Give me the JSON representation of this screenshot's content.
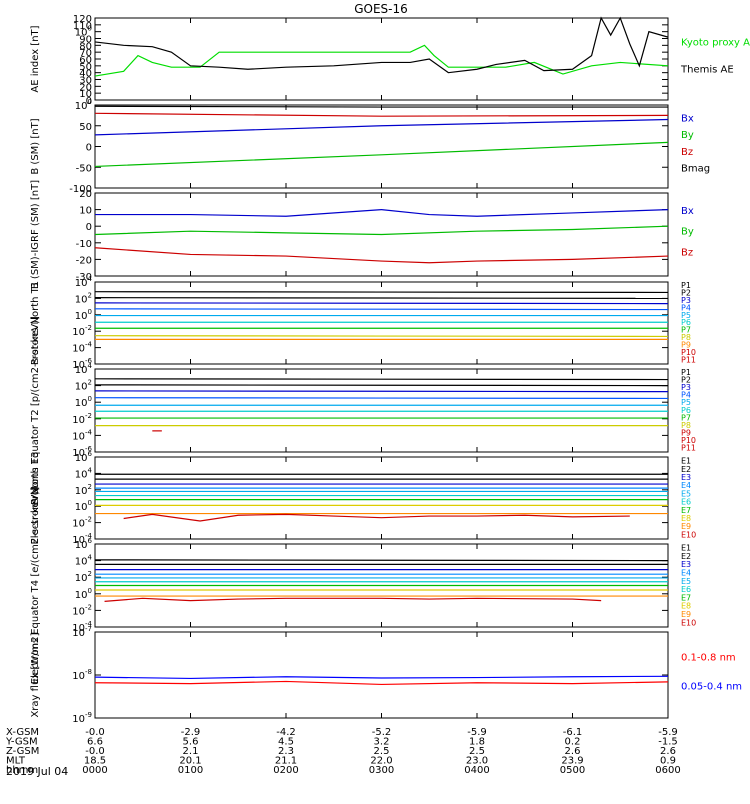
{
  "title": "GOES-16",
  "date_label": "2019 Jul 04",
  "x_ticks": [
    "0000",
    "0100",
    "0200",
    "0300",
    "0400",
    "0500",
    "0600"
  ],
  "ephemeris": {
    "rows": [
      {
        "label": "X-GSM",
        "values": [
          "-0.0",
          "-2.9",
          "-4.2",
          "-5.2",
          "-5.9",
          "-6.1",
          "-5.9"
        ]
      },
      {
        "label": "Y-GSM",
        "values": [
          "6.6",
          "5.6",
          "4.5",
          "3.2",
          "1.8",
          "0.2",
          "-1.5"
        ]
      },
      {
        "label": "Z-GSM",
        "values": [
          "-0.0",
          "2.1",
          "2.3",
          "2.5",
          "2.5",
          "2.6",
          "2.6"
        ]
      },
      {
        "label": "MLT",
        "values": [
          "18.5",
          "20.1",
          "21.1",
          "22.0",
          "23.0",
          "23.9",
          "0.9"
        ]
      },
      {
        "label": "hhmm",
        "values": [
          "0000",
          "0100",
          "0200",
          "0300",
          "0400",
          "0500",
          "0600"
        ]
      }
    ]
  },
  "chart_data": [
    {
      "type": "line",
      "ylabel": "AE index [nT]",
      "ylim": [
        0,
        120
      ],
      "yticks": [
        "0",
        "10",
        "20",
        "30",
        "40",
        "50",
        "60",
        "70",
        "80",
        "90",
        "100",
        "110",
        "120"
      ],
      "series": [
        {
          "name": "Kyoto proxy AE",
          "color": "#00dd00",
          "x": [
            0,
            0.3,
            0.45,
            0.6,
            0.8,
            1.1,
            1.3,
            2.5,
            3.3,
            3.45,
            3.55,
            3.7,
            4.3,
            4.6,
            4.9,
            5.2,
            5.5,
            6.0
          ],
          "values": [
            35,
            42,
            65,
            55,
            48,
            48,
            70,
            70,
            70,
            80,
            65,
            48,
            48,
            55,
            38,
            50,
            55,
            50
          ]
        },
        {
          "name": "Themis AE",
          "color": "#000000",
          "x": [
            0,
            0.3,
            0.6,
            0.8,
            1.0,
            1.3,
            1.6,
            2.0,
            2.5,
            3.0,
            3.3,
            3.5,
            3.7,
            4.0,
            4.2,
            4.5,
            4.7,
            5.0,
            5.2,
            5.3,
            5.4,
            5.5,
            5.6,
            5.7,
            5.8,
            6.0
          ],
          "values": [
            85,
            80,
            78,
            70,
            50,
            48,
            45,
            48,
            50,
            55,
            55,
            60,
            40,
            45,
            52,
            58,
            43,
            45,
            65,
            120,
            95,
            120,
            82,
            50,
            100,
            92
          ]
        }
      ]
    },
    {
      "type": "line",
      "ylabel": "B (SM) [nT]",
      "ylim": [
        -100,
        100
      ],
      "yticks": [
        "-100",
        "-50",
        "0",
        "50",
        "100"
      ],
      "series": [
        {
          "name": "Bx",
          "color": "#0000cc",
          "x": [
            0,
            3,
            6
          ],
          "values": [
            28,
            50,
            65
          ]
        },
        {
          "name": "By",
          "color": "#00bb00",
          "x": [
            0,
            3,
            6
          ],
          "values": [
            -48,
            -20,
            10
          ]
        },
        {
          "name": "Bz",
          "color": "#cc0000",
          "x": [
            0,
            3,
            6
          ],
          "values": [
            80,
            73,
            75
          ]
        },
        {
          "name": "Bmag",
          "color": "#000000",
          "x": [
            0,
            3,
            6
          ],
          "values": [
            97,
            95,
            95
          ]
        }
      ]
    },
    {
      "type": "line",
      "ylabel": "B (SM)-IGRF (SM) [nT]",
      "ylim": [
        -30,
        20
      ],
      "yticks": [
        "-30",
        "-20",
        "-10",
        "0",
        "10",
        "20"
      ],
      "series": [
        {
          "name": "Bx",
          "color": "#0000cc",
          "x": [
            0,
            1,
            2,
            3,
            3.5,
            4,
            5,
            6
          ],
          "values": [
            7,
            7,
            6,
            10,
            7,
            6,
            8,
            10
          ]
        },
        {
          "name": "By",
          "color": "#00bb00",
          "x": [
            0,
            1,
            2,
            3,
            4,
            5,
            6
          ],
          "values": [
            -5,
            -3,
            -4,
            -5,
            -3,
            -2,
            0
          ]
        },
        {
          "name": "Bz",
          "color": "#cc0000",
          "x": [
            0,
            1,
            2,
            3,
            3.5,
            4,
            5,
            6
          ],
          "values": [
            -13,
            -17,
            -18,
            -21,
            -22,
            -21,
            -20,
            -18
          ]
        }
      ]
    },
    {
      "type": "line",
      "ylabel": "Protons North T1",
      "log": true,
      "ylim": [
        -7,
        4
      ],
      "yticks": [
        "10-6",
        "10-4",
        "10-2",
        "100",
        "102",
        "104"
      ],
      "series": [
        {
          "name": "P1",
          "color": "#000000",
          "x": [
            0,
            6
          ],
          "values": [
            2.7,
            2.6
          ]
        },
        {
          "name": "P2",
          "color": "#000000",
          "x": [
            0,
            6
          ],
          "values": [
            1.9,
            1.8
          ]
        },
        {
          "name": "P3",
          "color": "#0000cc",
          "x": [
            0,
            6
          ],
          "values": [
            1.2,
            1.1
          ]
        },
        {
          "name": "P4",
          "color": "#0055ff",
          "x": [
            0,
            6
          ],
          "values": [
            0.4,
            0.3
          ]
        },
        {
          "name": "P5",
          "color": "#00aaee",
          "x": [
            0,
            6
          ],
          "values": [
            -0.5,
            -0.5
          ]
        },
        {
          "name": "P6",
          "color": "#00cccc",
          "x": [
            0,
            6
          ],
          "values": [
            -1.4,
            -1.4
          ]
        },
        {
          "name": "P7",
          "color": "#00bb00",
          "x": [
            0,
            6
          ],
          "values": [
            -2.2,
            -2.2
          ]
        },
        {
          "name": "P8",
          "color": "#cccc00",
          "x": [
            0,
            6
          ],
          "values": [
            -3.2,
            -3.3
          ]
        },
        {
          "name": "P9",
          "color": "#ff8800",
          "x": [
            0,
            6
          ],
          "values": [
            -3.7,
            -3.7
          ]
        }
      ],
      "legend": [
        "P1",
        "P2",
        "P3",
        "P4",
        "P5",
        "P6",
        "P7",
        "P8",
        "P9",
        "P10",
        "P11"
      ]
    },
    {
      "type": "line",
      "ylabel": "Protons Equator T2 [p/(cm2-s-sr-keV)]",
      "log": true,
      "ylim": [
        -7,
        4
      ],
      "yticks": [
        "10-6",
        "10-4",
        "10-2",
        "100",
        "102",
        "104"
      ],
      "series": [
        {
          "name": "P1",
          "color": "#000000",
          "x": [
            0,
            6
          ],
          "values": [
            2.7,
            2.6
          ]
        },
        {
          "name": "P2",
          "color": "#000000",
          "x": [
            0,
            6
          ],
          "values": [
            1.9,
            1.8
          ]
        },
        {
          "name": "P3",
          "color": "#0000cc",
          "x": [
            0,
            6
          ],
          "values": [
            1.1,
            1.0
          ]
        },
        {
          "name": "P4",
          "color": "#0055ff",
          "x": [
            0,
            6
          ],
          "values": [
            0.2,
            0.1
          ]
        },
        {
          "name": "P5",
          "color": "#00aaee",
          "x": [
            0,
            6
          ],
          "values": [
            -0.8,
            -0.8
          ]
        },
        {
          "name": "P6",
          "color": "#00cccc",
          "x": [
            0,
            6
          ],
          "values": [
            -1.6,
            -1.6
          ]
        },
        {
          "name": "P7",
          "color": "#00bb00",
          "x": [
            0,
            6
          ],
          "values": [
            -2.5,
            -2.5
          ]
        },
        {
          "name": "P8",
          "color": "#cccc00",
          "x": [
            0,
            6
          ],
          "values": [
            -3.5,
            -3.5
          ]
        },
        {
          "name": "P10",
          "color": "#cc0000",
          "x": [
            0.6,
            0.7
          ],
          "values": [
            -4.2,
            -4.2
          ]
        }
      ],
      "legend": [
        "P1",
        "P2",
        "P3",
        "P4",
        "P5",
        "P6",
        "P7",
        "P8",
        "P9",
        "P10",
        "P11"
      ]
    },
    {
      "type": "line",
      "ylabel": "Electrons North T3",
      "log": true,
      "ylim": [
        -4,
        6
      ],
      "yticks": [
        "10-4",
        "10-2",
        "100",
        "102",
        "104",
        "106"
      ],
      "series": [
        {
          "name": "E1",
          "color": "#000000",
          "x": [
            0,
            6
          ],
          "values": [
            3.9,
            3.9
          ]
        },
        {
          "name": "E2",
          "color": "#000000",
          "x": [
            0,
            6
          ],
          "values": [
            3.3,
            3.3
          ]
        },
        {
          "name": "E3",
          "color": "#0000cc",
          "x": [
            0,
            6
          ],
          "values": [
            2.7,
            2.7
          ]
        },
        {
          "name": "E4",
          "color": "#0088ff",
          "x": [
            0,
            6
          ],
          "values": [
            2.2,
            2.2
          ]
        },
        {
          "name": "E5",
          "color": "#00aaee",
          "x": [
            0,
            6
          ],
          "values": [
            1.8,
            1.8
          ]
        },
        {
          "name": "E6",
          "color": "#00cccc",
          "x": [
            0,
            6
          ],
          "values": [
            1.3,
            1.3
          ]
        },
        {
          "name": "E7",
          "color": "#00bb00",
          "x": [
            0,
            6
          ],
          "values": [
            0.8,
            0.8
          ]
        },
        {
          "name": "E8",
          "color": "#ddcc00",
          "x": [
            0,
            6
          ],
          "values": [
            0.1,
            0.1
          ]
        },
        {
          "name": "E9",
          "color": "#ff8800",
          "x": [
            0,
            6
          ],
          "values": [
            -0.9,
            -0.9
          ]
        },
        {
          "name": "E10",
          "color": "#cc0000",
          "x": [
            0.3,
            0.6,
            1.1,
            1.5,
            2.0,
            2.5,
            3.0,
            3.5,
            4.0,
            4.5,
            5.0,
            5.6
          ],
          "values": [
            -1.5,
            -1.0,
            -1.8,
            -1.1,
            -1.0,
            -1.2,
            -1.4,
            -1.2,
            -1.2,
            -1.1,
            -1.3,
            -1.2
          ]
        }
      ],
      "legend": [
        "E1",
        "E2",
        "E3",
        "E4",
        "E5",
        "E6",
        "E7",
        "E8",
        "E9",
        "E10"
      ]
    },
    {
      "type": "line",
      "ylabel": "Electrons Equator T4 [e/(cm2-s-sr-keV)]",
      "log": true,
      "ylim": [
        -5,
        6
      ],
      "yticks": [
        "10-4",
        "10-2",
        "100",
        "102",
        "104",
        "106"
      ],
      "series": [
        {
          "name": "E1",
          "color": "#000000",
          "x": [
            0,
            6
          ],
          "values": [
            3.9,
            3.8
          ]
        },
        {
          "name": "E2",
          "color": "#000000",
          "x": [
            0,
            6
          ],
          "values": [
            3.3,
            3.3
          ]
        },
        {
          "name": "E3",
          "color": "#0000cc",
          "x": [
            0,
            6
          ],
          "values": [
            2.6,
            2.6
          ]
        },
        {
          "name": "E4",
          "color": "#0088ff",
          "x": [
            0,
            6
          ],
          "values": [
            2.0,
            2.0
          ]
        },
        {
          "name": "E5",
          "color": "#00aaee",
          "x": [
            0,
            6
          ],
          "values": [
            1.5,
            1.5
          ]
        },
        {
          "name": "E6",
          "color": "#00cccc",
          "x": [
            0,
            6
          ],
          "values": [
            1.0,
            1.0
          ]
        },
        {
          "name": "E7",
          "color": "#00bb00",
          "x": [
            0,
            6
          ],
          "values": [
            0.5,
            0.5
          ]
        },
        {
          "name": "E8",
          "color": "#ddcc00",
          "x": [
            0,
            6
          ],
          "values": [
            -0.1,
            -0.1
          ]
        },
        {
          "name": "E9",
          "color": "#ff8800",
          "x": [
            0,
            6
          ],
          "values": [
            -0.9,
            -0.9
          ]
        },
        {
          "name": "E10",
          "color": "#cc0000",
          "x": [
            0.1,
            0.5,
            1.0,
            1.5,
            2.0,
            2.5,
            3.0,
            3.5,
            4.0,
            5.0,
            5.3
          ],
          "values": [
            -1.6,
            -1.2,
            -1.5,
            -1.3,
            -1.2,
            -1.2,
            -1.2,
            -1.3,
            -1.2,
            -1.3,
            -1.5
          ]
        }
      ],
      "legend": [
        "E1",
        "E2",
        "E3",
        "E4",
        "E5",
        "E6",
        "E7",
        "E8",
        "E9",
        "E10"
      ]
    },
    {
      "type": "line",
      "ylabel": "Xray flux [W/m2]",
      "log": true,
      "ylim": [
        -9,
        -7
      ],
      "yticks": [
        "10-9",
        "10-8",
        "10-7"
      ],
      "series": [
        {
          "name": "0.1-0.8 nm",
          "color": "#ff0000",
          "x": [
            0,
            1,
            2,
            3,
            4,
            5,
            6
          ],
          "values": [
            -8.18,
            -8.2,
            -8.15,
            -8.22,
            -8.18,
            -8.2,
            -8.16
          ]
        },
        {
          "name": "0.05-0.4 nm",
          "color": "#0000ff",
          "x": [
            0,
            1,
            2,
            3,
            4,
            5,
            6
          ],
          "values": [
            -8.05,
            -8.08,
            -8.04,
            -8.07,
            -8.06,
            -8.04,
            -8.03
          ]
        }
      ]
    }
  ]
}
